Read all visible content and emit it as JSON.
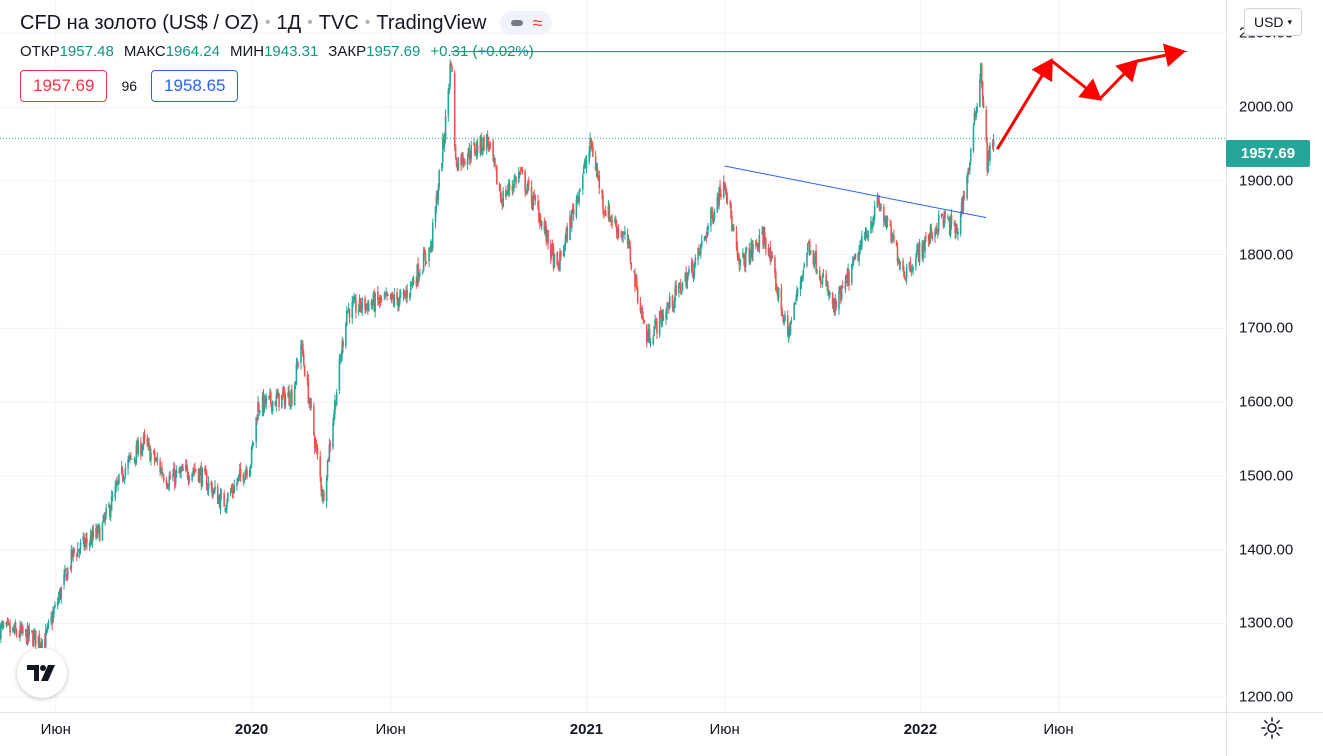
{
  "header": {
    "symbol": "CFD на золото (US$ / OZ)",
    "interval": "1Д",
    "source": "TVC",
    "platform": "TradingView"
  },
  "ohlc": {
    "open_label": "ОТКР",
    "open": "1957.48",
    "high_label": "МАКС",
    "high": "1964.24",
    "low_label": "МИН",
    "low": "1943.31",
    "close_label": "ЗАКР",
    "close": "1957.69",
    "change": "+0.31 (+0.02%)"
  },
  "quote": {
    "bid": "1957.69",
    "spread": "96",
    "ask": "1958.65"
  },
  "currency": "USD",
  "last_price_label": "1957.69",
  "colors": {
    "up": "#26a69a",
    "down": "#ef5350",
    "trendline": "#2962ff",
    "arrow": "#ff0000",
    "last_price_line": "#26a69a",
    "grid": "#f0f3fa"
  },
  "icons": {
    "logo": "tradingview-logo-icon",
    "settings": "gear-icon",
    "style": "wave-icon"
  },
  "chart_data": {
    "type": "candlestick",
    "y_ticks": [
      "2100.00",
      "2000.00",
      "1900.00",
      "1800.00",
      "1700.00",
      "1600.00",
      "1500.00",
      "1400.00",
      "1300.00",
      "1200.00"
    ],
    "ylim": [
      1180,
      2145
    ],
    "x_ticks": [
      {
        "label": "Июн",
        "date": "2019-06-01",
        "year": false
      },
      {
        "label": "2020",
        "date": "2020-01-01",
        "year": true
      },
      {
        "label": "Июн",
        "date": "2020-06-01",
        "year": false
      },
      {
        "label": "2021",
        "date": "2021-01-01",
        "year": true
      },
      {
        "label": "Июн",
        "date": "2021-06-01",
        "year": false
      },
      {
        "label": "2022",
        "date": "2022-01-01",
        "year": true
      },
      {
        "label": "Июн",
        "date": "2022-06-01",
        "year": false
      }
    ],
    "price_path": [
      [
        "2019-04-01",
        1293
      ],
      [
        "2019-05-01",
        1283
      ],
      [
        "2019-05-20",
        1277
      ],
      [
        "2019-06-20",
        1395
      ],
      [
        "2019-07-20",
        1425
      ],
      [
        "2019-08-15",
        1510
      ],
      [
        "2019-09-05",
        1545
      ],
      [
        "2019-10-01",
        1495
      ],
      [
        "2019-11-01",
        1510
      ],
      [
        "2019-12-01",
        1462
      ],
      [
        "2019-12-31",
        1520
      ],
      [
        "2020-01-08",
        1595
      ],
      [
        "2020-02-15",
        1610
      ],
      [
        "2020-02-24",
        1680
      ],
      [
        "2020-03-19",
        1470
      ],
      [
        "2020-04-14",
        1725
      ],
      [
        "2020-05-15",
        1735
      ],
      [
        "2020-06-15",
        1740
      ],
      [
        "2020-07-15",
        1810
      ],
      [
        "2020-07-30",
        1965
      ],
      [
        "2020-08-06",
        2068
      ],
      [
        "2020-08-11",
        1925
      ],
      [
        "2020-09-15",
        1955
      ],
      [
        "2020-09-30",
        1875
      ],
      [
        "2020-10-20",
        1910
      ],
      [
        "2020-11-09",
        1860
      ],
      [
        "2020-11-30",
        1778
      ],
      [
        "2021-01-06",
        1950
      ],
      [
        "2021-01-20",
        1865
      ],
      [
        "2021-02-15",
        1815
      ],
      [
        "2021-03-08",
        1685
      ],
      [
        "2021-04-01",
        1730
      ],
      [
        "2021-05-01",
        1790
      ],
      [
        "2021-06-01",
        1905
      ],
      [
        "2021-06-16",
        1785
      ],
      [
        "2021-07-15",
        1825
      ],
      [
        "2021-08-09",
        1690
      ],
      [
        "2021-09-01",
        1815
      ],
      [
        "2021-09-29",
        1725
      ],
      [
        "2021-10-20",
        1785
      ],
      [
        "2021-11-16",
        1870
      ],
      [
        "2021-12-15",
        1775
      ],
      [
        "2022-01-25",
        1850
      ],
      [
        "2022-02-10",
        1830
      ],
      [
        "2022-02-24",
        1925
      ],
      [
        "2022-03-08",
        2055
      ],
      [
        "2022-03-15",
        1925
      ],
      [
        "2022-03-22",
        1958
      ]
    ],
    "annotations": {
      "resistance_line": {
        "from": [
          "2020-08-06",
          2075
        ],
        "to": [
          "2022-10-20",
          2075
        ]
      },
      "descending_trendline": {
        "from": [
          "2021-06-01",
          1920
        ],
        "to": [
          "2022-03-14",
          1850
        ]
      },
      "forecast_arrows": [
        [
          "2022-03-26",
          1943
        ],
        [
          "2022-05-24",
          2063
        ],
        [
          "2022-07-16",
          2011
        ],
        [
          "2022-08-25",
          2062
        ],
        [
          "2022-10-15",
          2075
        ]
      ]
    },
    "last_price": 1957.69
  }
}
